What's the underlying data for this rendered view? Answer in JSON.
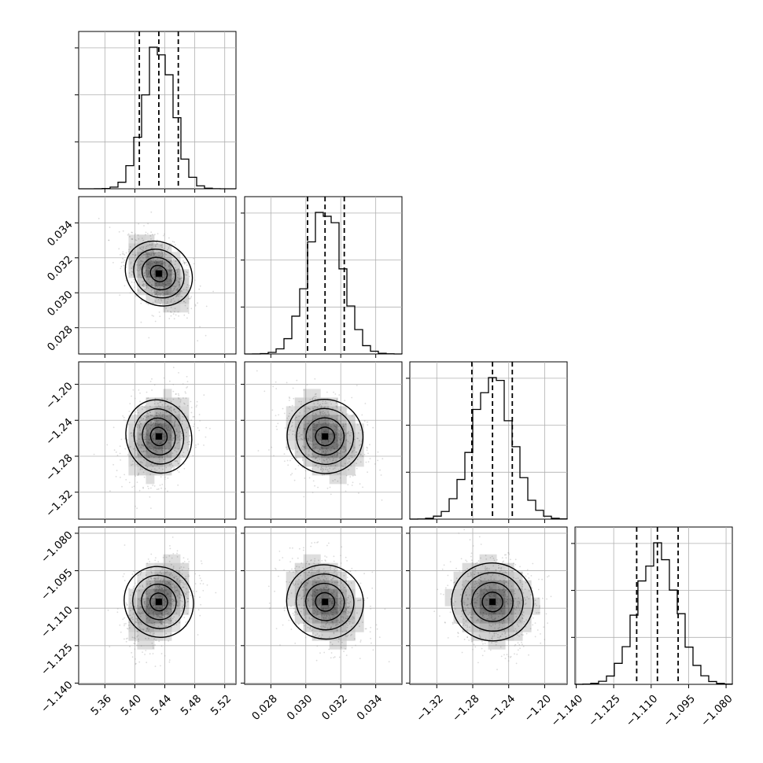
{
  "chart_data": {
    "type": "corner",
    "grid": true,
    "parameters": [
      {
        "range": [
          5.325,
          5.535
        ],
        "median": 5.432,
        "quantiles": [
          5.406,
          5.432,
          5.458
        ],
        "ticks": [
          5.36,
          5.4,
          5.44,
          5.48,
          5.52
        ],
        "tick_labels": [
          "5.36",
          "5.40",
          "5.44",
          "5.48",
          "5.52"
        ],
        "sd": 0.02
      },
      {
        "range": [
          0.0265,
          0.0355
        ],
        "median": 0.0311,
        "quantiles": [
          0.0301,
          0.0311,
          0.0322
        ],
        "ticks": [
          0.028,
          0.03,
          0.032,
          0.034
        ],
        "tick_labels": [
          "0.028",
          "0.030",
          "0.032",
          "0.034"
        ],
        "sd": 0.001
      },
      {
        "range": [
          -1.35,
          -1.175
        ],
        "median": -1.258,
        "quantiles": [
          -1.281,
          -1.258,
          -1.236
        ],
        "ticks": [
          -1.32,
          -1.28,
          -1.24,
          -1.2
        ],
        "tick_labels": [
          "−1.32",
          "−1.28",
          "−1.24",
          "−1.20"
        ],
        "sd": 0.022
      },
      {
        "range": [
          -1.1405,
          -1.0775
        ],
        "median": -1.1075,
        "quantiles": [
          -1.1158,
          -1.1075,
          -1.0992
        ],
        "ticks": [
          -1.14,
          -1.125,
          -1.11,
          -1.095,
          -1.08
        ],
        "tick_labels": [
          "−1.140",
          "−1.125",
          "−1.110",
          "−1.095",
          "−1.080"
        ],
        "sd": 0.008
      }
    ],
    "correlations": {
      "1-0": -0.5,
      "2-0": 0.25,
      "2-1": -0.25,
      "3-0": 0.4,
      "3-1": -0.3,
      "3-2": -0.1
    },
    "colors": {
      "line": "#000000",
      "grid": "#b0b0b0",
      "scatter": "#999999",
      "density": "#000000"
    }
  }
}
